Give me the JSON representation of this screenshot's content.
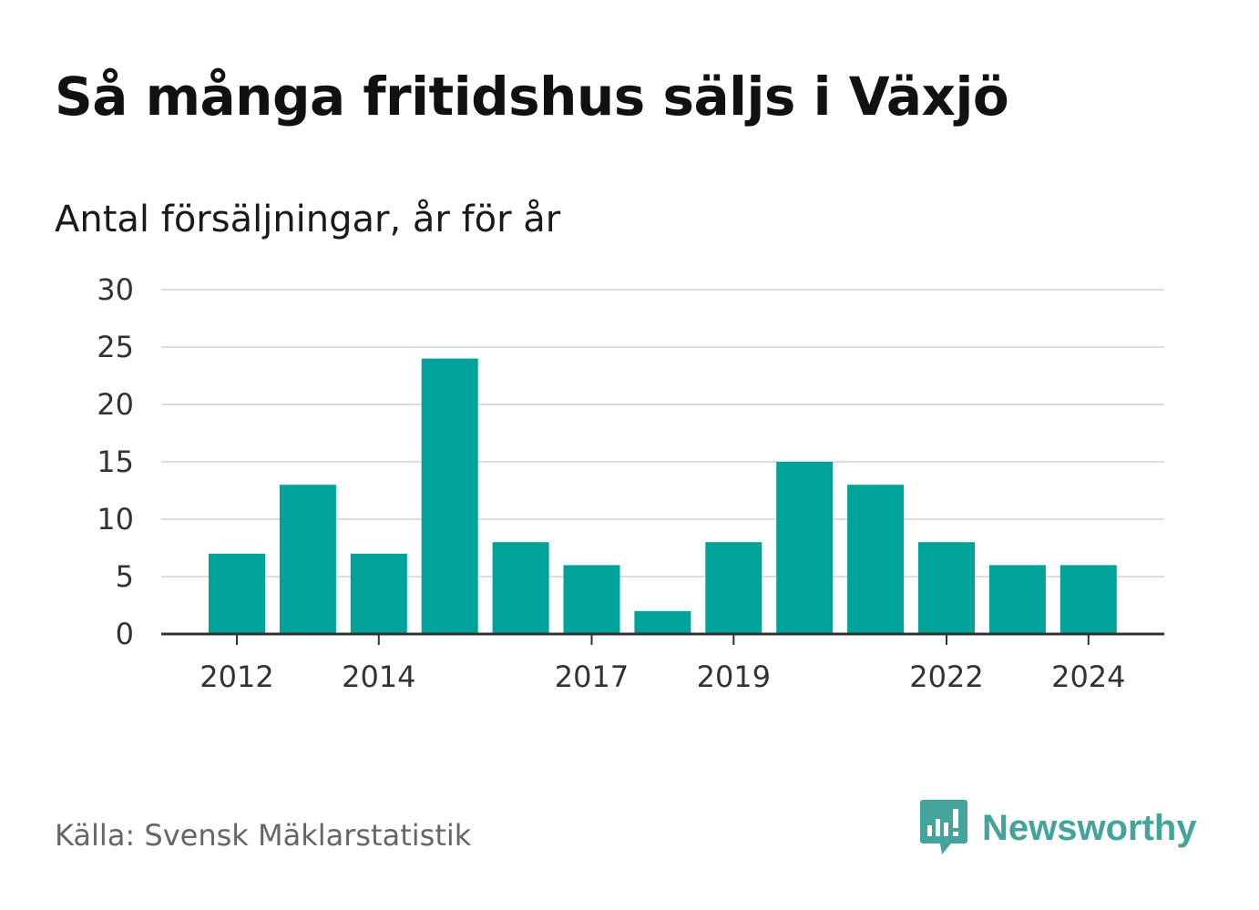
{
  "title": "Så många fritidshus säljs i Växjö",
  "subtitle": "Antal försäljningar, år för år",
  "source": "Källa: Svensk Mäklarstatistik",
  "brand": {
    "name": "Newsworthy",
    "icon": "speech-bubble-bar-chart-icon",
    "color": "#44a49b"
  },
  "colors": {
    "bar": "#00a39a",
    "grid": "#dddddd",
    "axis": "#333333"
  },
  "chart_data": {
    "type": "bar",
    "categories": [
      "2012",
      "2013",
      "2014",
      "2015",
      "2016",
      "2017",
      "2018",
      "2019",
      "2020",
      "2021",
      "2022",
      "2023",
      "2024"
    ],
    "values": [
      7,
      13,
      7,
      24,
      8,
      6,
      2,
      8,
      15,
      13,
      8,
      6,
      6
    ],
    "xtick_labels": [
      "2012",
      "2014",
      "2017",
      "2019",
      "2022",
      "2024"
    ],
    "yticks": [
      0,
      5,
      10,
      15,
      20,
      25,
      30
    ],
    "ylim": [
      0,
      30
    ],
    "grid": true,
    "legend": "none"
  }
}
